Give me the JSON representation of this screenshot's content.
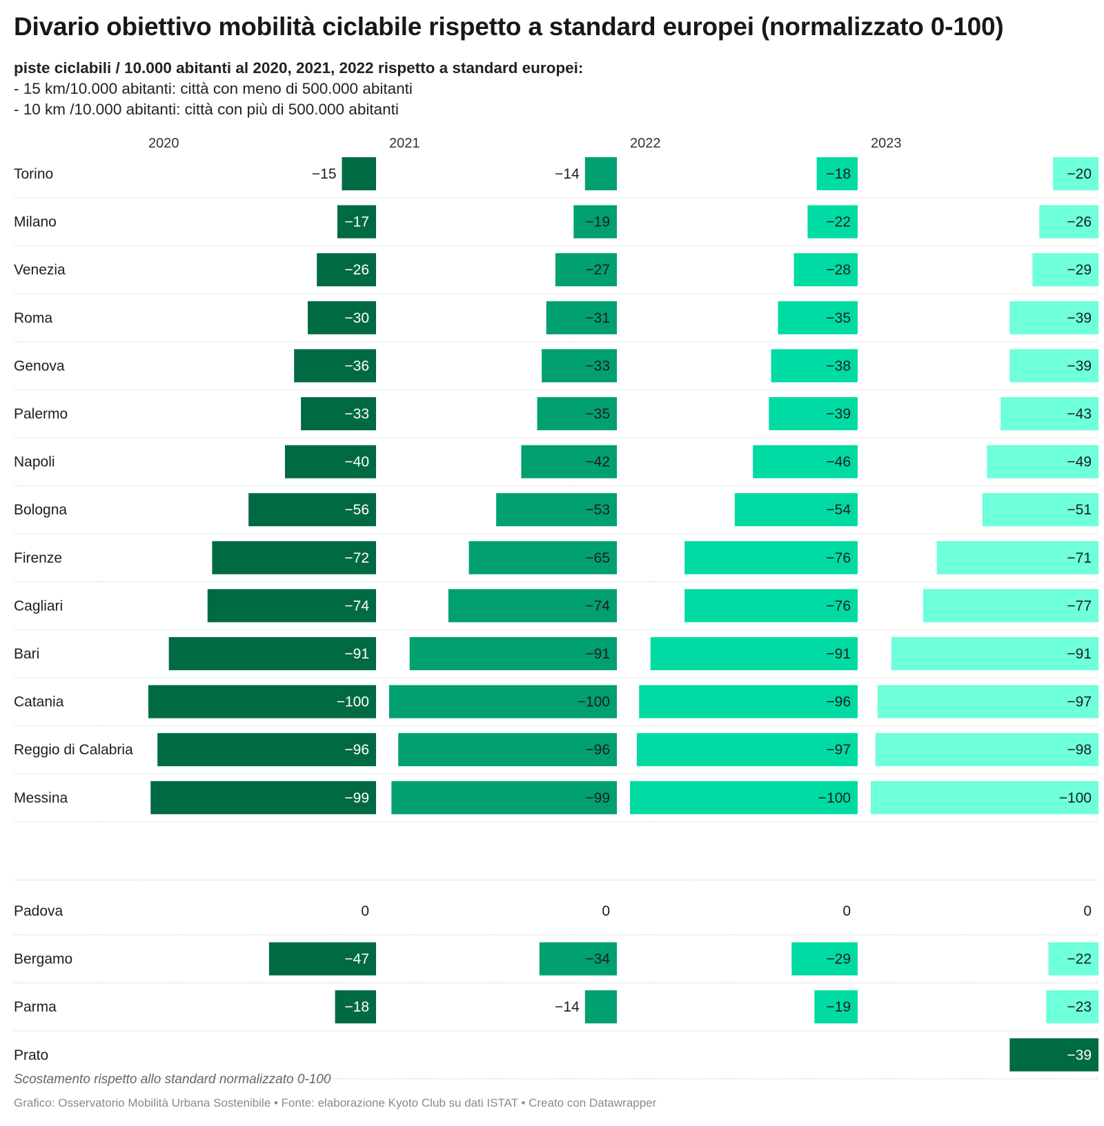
{
  "title": "Divario obiettivo mobilità ciclabile rispetto a standard europei (normalizzato 0-100)",
  "subtitle": {
    "bold": "piste ciclabili / 10.000 abitanti al 2020, 2021, 2022 rispetto a standard europei:",
    "lines": [
      "- 15 km/10.000 abitanti: città con meno di 500.000 abitanti",
      "- 10 km /10.000 abitanti: città con più di 500.000 abitanti"
    ]
  },
  "notes": "Scostamento rispetto allo standard normalizzato 0-100",
  "source": "Grafico: Osservatorio Mobilità Urbana Sostenibile • Fonte: elaborazione Kyoto Club su dati ISTAT • Creato con Datawrapper",
  "colors": {
    "2020": "#006a43",
    "2021": "#00a070",
    "2022": "#00dba4",
    "2023": "#6effdb",
    "prato": "#006a43",
    "label_on_dark": "#ffffff",
    "label_on_light": "#1d1d1d",
    "separator": "#cccccc"
  },
  "chart_data": {
    "type": "bar",
    "orientation": "horizontal",
    "layout": "small-multiples",
    "series": [
      {
        "name": "2020"
      },
      {
        "name": "2021"
      },
      {
        "name": "2022"
      },
      {
        "name": "2023"
      }
    ],
    "xlim": [
      -100,
      0
    ],
    "grid": false,
    "groups": [
      {
        "rows": [
          {
            "city": "Torino",
            "values": [
              "−15",
              "−14",
              "−18",
              "−20"
            ]
          },
          {
            "city": "Milano",
            "values": [
              "−17",
              "−19",
              "−22",
              "−26"
            ]
          },
          {
            "city": "Venezia",
            "values": [
              "−26",
              "−27",
              "−28",
              "−29"
            ]
          },
          {
            "city": "Roma",
            "values": [
              "−30",
              "−31",
              "−35",
              "−39"
            ]
          },
          {
            "city": "Genova",
            "values": [
              "−36",
              "−33",
              "−38",
              "−39"
            ]
          },
          {
            "city": "Palermo",
            "values": [
              "−33",
              "−35",
              "−39",
              "−43"
            ]
          },
          {
            "city": "Napoli",
            "values": [
              "−40",
              "−42",
              "−46",
              "−49"
            ]
          },
          {
            "city": "Bologna",
            "values": [
              "−56",
              "−53",
              "−54",
              "−51"
            ]
          },
          {
            "city": "Firenze",
            "values": [
              "−72",
              "−65",
              "−76",
              "−71"
            ]
          },
          {
            "city": "Cagliari",
            "values": [
              "−74",
              "−74",
              "−76",
              "−77"
            ]
          },
          {
            "city": "Bari",
            "values": [
              "−91",
              "−91",
              "−91",
              "−91"
            ]
          },
          {
            "city": "Catania",
            "values": [
              "−100",
              "−100",
              "−96",
              "−97"
            ]
          },
          {
            "city": "Reggio di Calabria",
            "values": [
              "−96",
              "−96",
              "−97",
              "−98"
            ]
          },
          {
            "city": "Messina",
            "values": [
              "−99",
              "−99",
              "−100",
              "−100"
            ]
          }
        ]
      },
      {
        "rows": [
          {
            "city": "Padova",
            "values": [
              "0",
              "0",
              "0",
              "0"
            ]
          },
          {
            "city": "Bergamo",
            "values": [
              "−47",
              "−34",
              "−29",
              "−22"
            ]
          },
          {
            "city": "Parma",
            "values": [
              "−18",
              "−14",
              "−19",
              "−23"
            ]
          },
          {
            "city": "Prato",
            "values": [
              null,
              null,
              null,
              "−39"
            ],
            "highlight": true
          }
        ]
      }
    ]
  }
}
